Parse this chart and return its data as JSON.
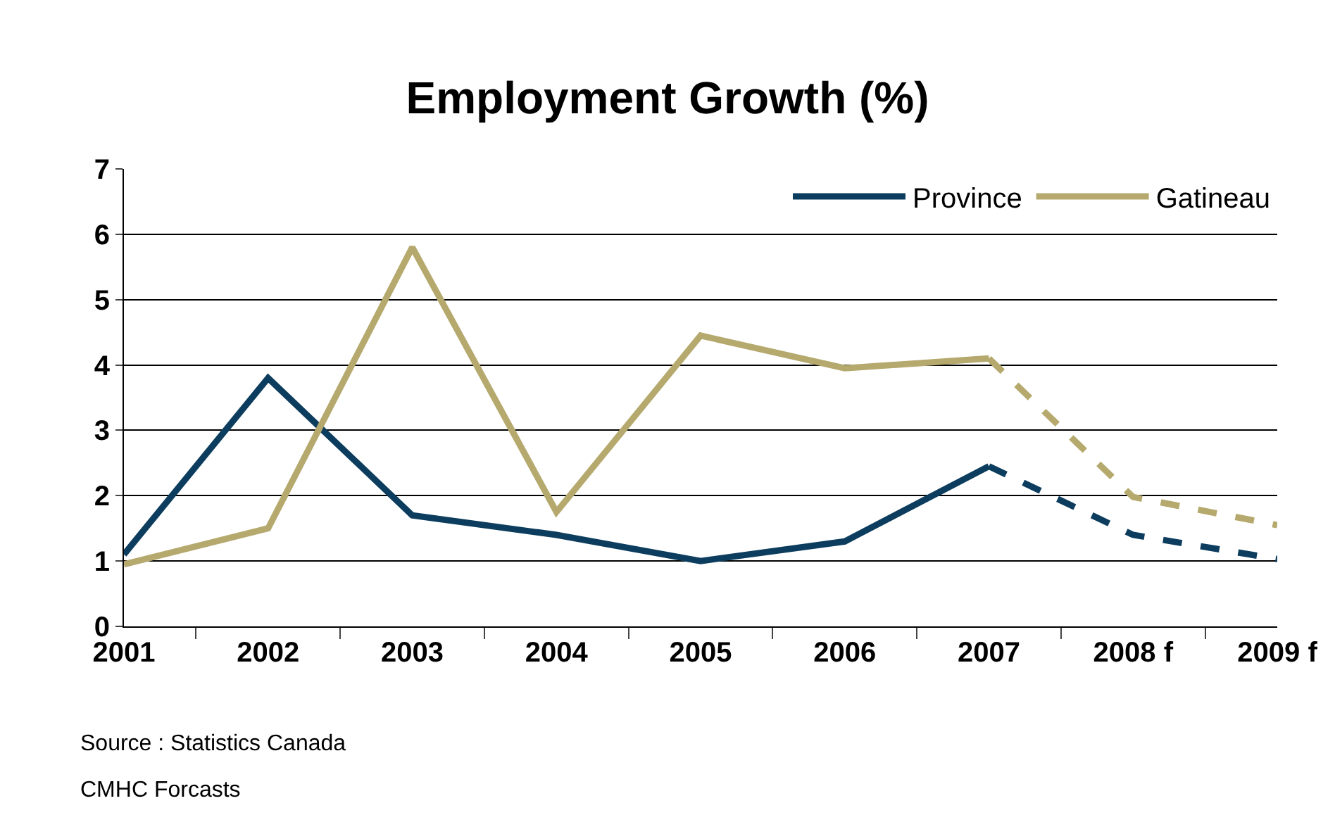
{
  "chart_data": {
    "type": "line",
    "title": "Employment Growth (%)",
    "categories": [
      "2001",
      "2002",
      "2003",
      "2004",
      "2005",
      "2006",
      "2007",
      "2008 f",
      "2009 f"
    ],
    "series": [
      {
        "name": "Province",
        "color": "#0d3d5e",
        "line_style": "solid",
        "values": [
          1.1,
          3.8,
          1.7,
          1.4,
          1.0,
          1.3,
          2.45,
          null,
          null
        ]
      },
      {
        "name": "Gatineau",
        "color": "#b5a96e",
        "line_style": "solid",
        "values": [
          0.95,
          1.5,
          5.8,
          1.75,
          4.45,
          3.95,
          4.1,
          null,
          null
        ]
      },
      {
        "color": "#0d3d5e",
        "line_style": "dashed",
        "values": [
          null,
          null,
          null,
          null,
          null,
          null,
          2.45,
          1.4,
          1.03
        ]
      },
      {
        "color": "#b5a96e",
        "line_style": "dashed",
        "values": [
          null,
          null,
          null,
          null,
          null,
          null,
          4.1,
          1.98,
          1.55
        ]
      }
    ],
    "ylim": [
      0,
      7
    ],
    "yticks": [
      0,
      1,
      2,
      3,
      4,
      5,
      6,
      7
    ],
    "grid": "y",
    "legend": "top right",
    "marker": "none",
    "annotations": [
      "Source : Statistics Canada",
      "CMHC Forcasts"
    ]
  }
}
